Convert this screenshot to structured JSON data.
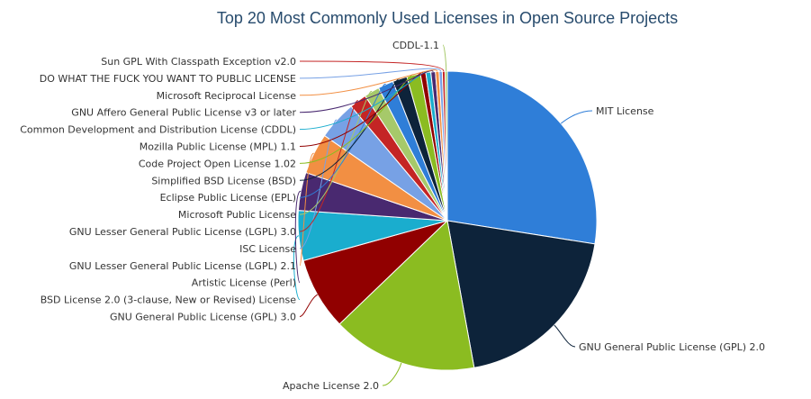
{
  "chart_data": {
    "type": "pie",
    "title": "Top 20 Most Commonly Used Licenses in Open Source Projects",
    "slices": [
      {
        "label": "MIT License",
        "value": 28.0,
        "color": "#2f7ed8"
      },
      {
        "label": "GNU General Public License (GPL) 2.0",
        "value": 20.0,
        "color": "#0d233a"
      },
      {
        "label": "Apache License 2.0",
        "value": 16.0,
        "color": "#8bbc21"
      },
      {
        "label": "GNU General Public License (GPL) 3.0",
        "value": 8.0,
        "color": "#910000"
      },
      {
        "label": "BSD License 2.0 (3-clause, New or Revised) License",
        "value": 5.5,
        "color": "#1aadce"
      },
      {
        "label": "Artistic License (Perl)",
        "value": 4.2,
        "color": "#492970"
      },
      {
        "label": "GNU Lesser General Public License (LGPL) 2.1",
        "value": 4.5,
        "color": "#f28f43"
      },
      {
        "label": "ISC License",
        "value": 4.3,
        "color": "#77a1e5"
      },
      {
        "label": "GNU Lesser General Public License (LGPL) 3.0",
        "value": 1.9,
        "color": "#c42525"
      },
      {
        "label": "Microsoft Public License",
        "value": 1.7,
        "color": "#a6c96a"
      },
      {
        "label": "Eclipse Public License (EPL)",
        "value": 1.7,
        "color": "#2f7ed8"
      },
      {
        "label": "Simplified BSD License (BSD)",
        "value": 1.6,
        "color": "#0d233a"
      },
      {
        "label": "Code Project Open License 1.02",
        "value": 1.5,
        "color": "#8bbc21"
      },
      {
        "label": "Mozilla Public License (MPL) 1.1",
        "value": 0.6,
        "color": "#910000"
      },
      {
        "label": "Common Development and Distribution License (CDDL)",
        "value": 0.55,
        "color": "#1aadce"
      },
      {
        "label": "GNU Affero General Public License v3 or later",
        "value": 0.5,
        "color": "#492970"
      },
      {
        "label": "Microsoft Reciprocal License",
        "value": 0.4,
        "color": "#f28f43"
      },
      {
        "label": "DO WHAT THE FUCK YOU WANT TO PUBLIC LICENSE",
        "value": 0.35,
        "color": "#77a1e5"
      },
      {
        "label": "Sun GPL With Classpath Exception v2.0",
        "value": 0.3,
        "color": "#c42525"
      },
      {
        "label": "CDDL-1.1",
        "value": 0.25,
        "color": "#a6c96a"
      }
    ]
  }
}
